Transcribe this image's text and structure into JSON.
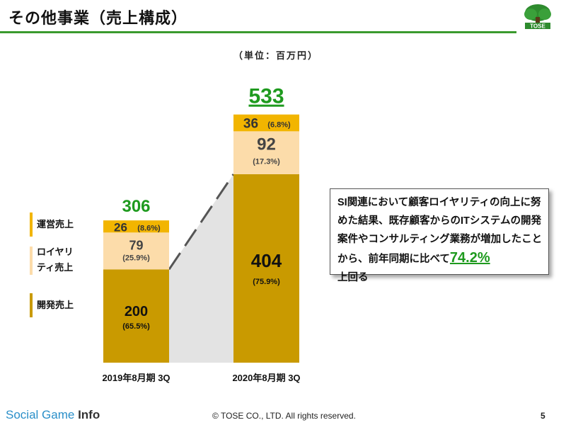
{
  "page": {
    "title": "その他事業（売上構成）",
    "logo_text": "TOSE",
    "unit": "（単位：百万円）",
    "legend": [
      {
        "label": "運営売上",
        "color": "#f2b500"
      },
      {
        "label": "ロイヤリティ売上",
        "label_line1": "ロイヤリ",
        "label_line2": "ティ売上",
        "color": "#fcdcaa"
      },
      {
        "label": "開発売上",
        "color": "#c99a00"
      }
    ],
    "callout": {
      "text": "SI関連において顧客ロイヤリティの向上に努めた結果、既存顧客からのITシステムの開発案件やコンサルティング業務が増加したことから、前年同期に比べて",
      "highlight": "74.2%",
      "tail": "上回る"
    },
    "footer": {
      "brand_main": "Social Game",
      "brand_bold": "Info",
      "copyright": "© TOSE CO., LTD. All rights reserved.",
      "page_number": "5"
    }
  },
  "chart_data": {
    "type": "bar",
    "stacked": true,
    "categories": [
      "2019年8月期 3Q",
      "2020年8月期 3Q"
    ],
    "totals": [
      306,
      533
    ],
    "series": [
      {
        "name": "開発売上",
        "values": [
          200,
          404
        ],
        "shares": [
          "(65.5%)",
          "(75.9%)"
        ],
        "color": "#c99a00"
      },
      {
        "name": "ロイヤリティ売上",
        "values": [
          79,
          92
        ],
        "shares": [
          "(25.9%)",
          "(17.3%)"
        ],
        "color": "#fcdcaa"
      },
      {
        "name": "運営売上",
        "values": [
          26,
          36
        ],
        "shares": [
          "(8.6%)",
          "(6.8%)"
        ],
        "color": "#f2b500"
      }
    ],
    "ylim": [
      0,
      533
    ],
    "grid": false,
    "colors": {
      "total_label": "#1e9a1e",
      "connector": "#e3e3e3",
      "dash": "#555555"
    }
  }
}
